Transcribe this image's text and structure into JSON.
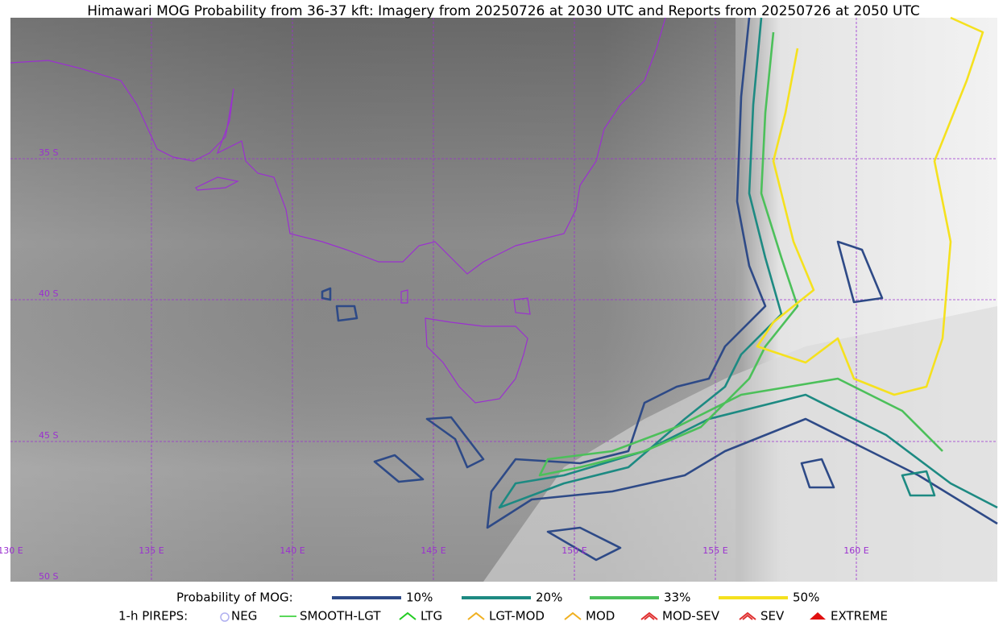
{
  "title": "Himawari MOG Probability from 36-37 kft: Imagery from 20250726 at 2030 UTC and Reports from 20250726 at 2050 UTC",
  "lat_labels": [
    "35 S",
    "40 S",
    "45 S",
    "50 S"
  ],
  "lon_labels": [
    "130 E",
    "135 E",
    "140 E",
    "145 E",
    "150 E",
    "155 E",
    "160 E"
  ],
  "probability_legend": {
    "title": "Probability of MOG:",
    "items": [
      {
        "label": "10%",
        "color": "#2e4a87"
      },
      {
        "label": "20%",
        "color": "#1d8a82"
      },
      {
        "label": "33%",
        "color": "#4cc05a"
      },
      {
        "label": "50%",
        "color": "#f5e11e"
      }
    ]
  },
  "pirep_legend": {
    "title": "1-h PIREPS:",
    "items": [
      "NEG",
      "SMOOTH-LGT",
      "LTG",
      "LGT-MOD",
      "MOD",
      "MOD-SEV",
      "SEV",
      "EXTREME"
    ]
  }
}
